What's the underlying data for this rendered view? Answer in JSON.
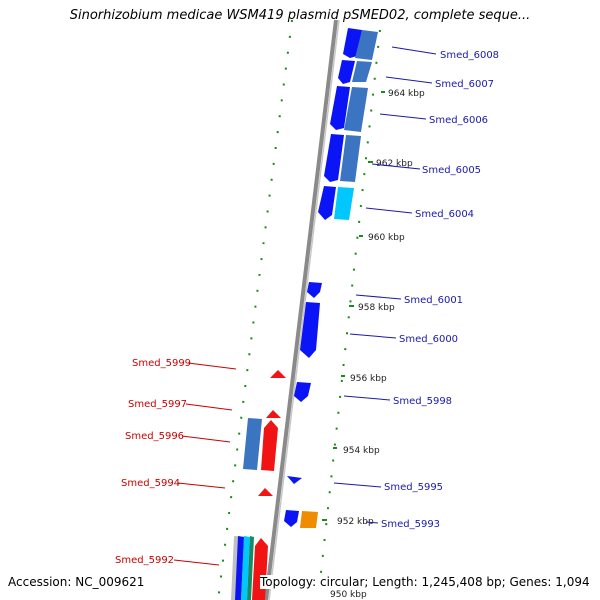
{
  "header": {
    "title": "Sinorhizobium medicae WSM419 plasmid pSMED02, complete seque..."
  },
  "footer": {
    "accession": "Accession: NC_009621",
    "topology": "Topology: circular; Length: 1,245,408 bp; Genes: 1,094"
  },
  "colors": {
    "forward_gene": "#0a14f5",
    "forward_gene_light": "#3b74c0",
    "forward_gene_cyan": "#00c8ff",
    "reverse_gene": "#f01414",
    "reverse_label": "#cc0000",
    "forward_label": "#1a1aaa",
    "orange_feature": "#f08c00",
    "ticks": "#1a8a1a",
    "backbone": "#8a8a8a"
  },
  "ruler": {
    "ticks": [
      {
        "label": "964 kbp"
      },
      {
        "label": "962 kbp"
      },
      {
        "label": "960 kbp"
      },
      {
        "label": "958 kbp"
      },
      {
        "label": "956 kbp"
      },
      {
        "label": "954 kbp"
      },
      {
        "label": "952 kbp"
      },
      {
        "label": "950 kbp"
      }
    ]
  },
  "genes": {
    "forward": [
      {
        "label": "Smed_6008"
      },
      {
        "label": "Smed_6007"
      },
      {
        "label": "Smed_6006"
      },
      {
        "label": "Smed_6005"
      },
      {
        "label": "Smed_6004"
      },
      {
        "label": "Smed_6001"
      },
      {
        "label": "Smed_6000"
      },
      {
        "label": "Smed_5998"
      },
      {
        "label": "Smed_5995"
      },
      {
        "label": "Smed_5993"
      }
    ],
    "reverse": [
      {
        "label": "Smed_5999"
      },
      {
        "label": "Smed_5997"
      },
      {
        "label": "Smed_5996"
      },
      {
        "label": "Smed_5994"
      },
      {
        "label": "Smed_5992"
      }
    ]
  }
}
